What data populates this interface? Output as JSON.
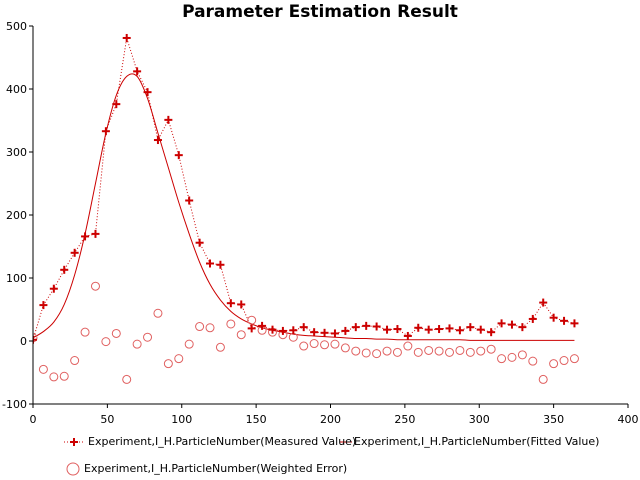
{
  "chart_data": {
    "type": "scatter",
    "title": "Parameter Estimation Result",
    "xlabel": "",
    "ylabel": "",
    "xlim": [
      0,
      400
    ],
    "ylim": [
      -100,
      500
    ],
    "xticks": [
      "0",
      "50",
      "100",
      "150",
      "200",
      "250",
      "300",
      "350",
      "400"
    ],
    "yticks": [
      "-100",
      "0",
      "100",
      "200",
      "300",
      "400",
      "500"
    ],
    "grid": false,
    "legend_position": "bottom",
    "colors": {
      "measured": "#cc0000",
      "fitted": "#cc0000",
      "error": "#e06060",
      "axis": "#000000"
    },
    "series": [
      {
        "name": "Experiment,I_H.ParticleNumber(Measured Value)",
        "style": "plus-dotted",
        "x": [
          0,
          7,
          14,
          21,
          28,
          35,
          42,
          49,
          56,
          63,
          70,
          77,
          84,
          91,
          98,
          105,
          112,
          119,
          126,
          133,
          140,
          147,
          154,
          161,
          168,
          175,
          182,
          189,
          196,
          203,
          210,
          217,
          224,
          231,
          238,
          245,
          252,
          259,
          266,
          273,
          280,
          287,
          294,
          301,
          308,
          315,
          322,
          329,
          336,
          343,
          350,
          357,
          364
        ],
        "y": [
          2,
          57,
          83,
          113,
          140,
          166,
          170,
          333,
          376,
          481,
          428,
          395,
          319,
          351,
          295,
          223,
          156,
          123,
          121,
          60,
          58,
          20,
          24,
          18,
          16,
          17,
          22,
          14,
          13,
          12,
          16,
          22,
          24,
          23,
          18,
          19,
          8,
          21,
          18,
          19,
          20,
          17,
          22,
          18,
          14,
          28,
          26,
          22,
          35,
          61,
          37,
          32,
          28
        ]
      },
      {
        "name": "Experiment,I_H.ParticleNumber(Fitted Value)",
        "style": "line",
        "x": [
          0,
          7,
          14,
          21,
          28,
          35,
          42,
          49,
          56,
          63,
          70,
          77,
          84,
          91,
          98,
          105,
          112,
          119,
          126,
          133,
          140,
          147,
          154,
          161,
          168,
          175,
          182,
          189,
          196,
          203,
          210,
          217,
          224,
          231,
          238,
          245,
          252,
          259,
          266,
          273,
          280,
          287,
          294,
          301,
          308,
          315,
          322,
          329,
          336,
          343,
          350,
          357,
          364
        ],
        "y": [
          5,
          15,
          30,
          58,
          105,
          170,
          250,
          330,
          390,
          420,
          420,
          385,
          330,
          275,
          220,
          170,
          125,
          90,
          65,
          47,
          35,
          27,
          21,
          17,
          14,
          11,
          9,
          8,
          7,
          6,
          5,
          4,
          4,
          3,
          3,
          2,
          2,
          2,
          2,
          2,
          2,
          2,
          1,
          1,
          1,
          1,
          1,
          1,
          1,
          1,
          1,
          1,
          1
        ]
      },
      {
        "name": "Experiment,I_H.ParticleNumber(Weighted Error)",
        "style": "open-circle",
        "x": [
          0,
          7,
          14,
          21,
          28,
          35,
          42,
          49,
          56,
          63,
          70,
          77,
          84,
          91,
          98,
          105,
          112,
          119,
          126,
          133,
          140,
          147,
          154,
          161,
          168,
          175,
          182,
          189,
          196,
          203,
          210,
          217,
          224,
          231,
          238,
          245,
          252,
          259,
          266,
          273,
          280,
          287,
          294,
          301,
          308,
          315,
          322,
          329,
          336,
          343,
          350,
          357,
          364
        ],
        "y": [
          5,
          -45,
          -57,
          -56,
          -31,
          14,
          87,
          -1,
          12,
          -61,
          -5,
          6,
          44,
          -36,
          -28,
          -5,
          23,
          21,
          -10,
          27,
          10,
          33,
          17,
          14,
          10,
          6,
          -8,
          -4,
          -6,
          -5,
          -11,
          -16,
          -19,
          -20,
          -16,
          -18,
          -8,
          -18,
          -15,
          -16,
          -18,
          -15,
          -18,
          -16,
          -13,
          -28,
          -26,
          -22,
          -32,
          -61,
          -36,
          -31,
          -28
        ]
      }
    ]
  }
}
